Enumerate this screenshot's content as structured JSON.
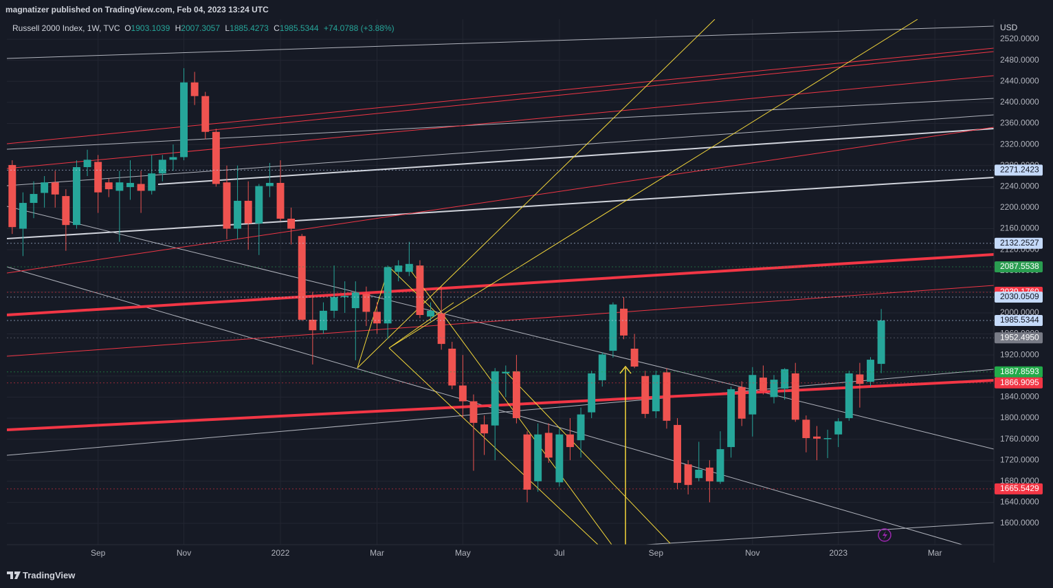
{
  "header": {
    "published": "magnatizer published on TradingView.com, Feb 04, 2023 13:24 UTC"
  },
  "footer": {
    "brand": "TradingView"
  },
  "chart_data": {
    "type": "candlestick",
    "title": "Russell 2000 Index, 1W, TVC",
    "ohlc_labels": [
      "O",
      "H",
      "L",
      "C"
    ],
    "change": "+74.0788 (+3.88%)",
    "currency": "USD",
    "categories": [
      null,
      null,
      null,
      null,
      null,
      null,
      null,
      null,
      "Sep",
      null,
      null,
      null,
      null,
      null,
      null,
      null,
      "Nov",
      null,
      null,
      null,
      null,
      null,
      null,
      null,
      null,
      "2022",
      null,
      null,
      null,
      null,
      null,
      null,
      null,
      null,
      "Mar",
      null,
      null,
      null,
      null,
      null,
      null,
      null,
      "May",
      null,
      null,
      null,
      null,
      null,
      null,
      null,
      null,
      "Jul",
      null,
      null,
      null,
      null,
      null,
      null,
      null,
      null,
      "Sep",
      null,
      null,
      null,
      null,
      null,
      null,
      null,
      null,
      "Nov",
      null,
      null,
      null,
      null,
      null,
      null,
      null,
      "2023",
      null,
      null,
      null,
      null,
      null,
      null,
      null,
      null,
      "Mar",
      null,
      null,
      null,
      null,
      null
    ],
    "open": [
      2281,
      2160,
      2209,
      2228,
      2248,
      2222,
      2167,
      2277,
      2287,
      2248,
      2232,
      2239,
      2245,
      2232,
      2265,
      2291,
      2296,
      2438,
      2412,
      2344,
      2248,
      2160,
      2213,
      2170,
      2241,
      2247,
      2179,
      2146,
      1987,
      1967,
      2004,
      2030,
      2009,
      2036,
      2002,
      1980,
      2078,
      2078,
      2090,
      1993,
      1999,
      1932,
      1862,
      1832,
      1788,
      1786,
      1885,
      1889,
      1769,
      1680,
      1772,
      1678,
      1769,
      1758,
      1811,
      1872,
      1928,
      2008,
      1932,
      1880,
      1813,
      1887,
      1787,
      1712,
      1686,
      1706,
      1679,
      1745,
      1859,
      1807,
      1877,
      1840,
      1856,
      1885,
      1797,
      1765,
      1760,
      1769,
      1800,
      1883,
      1869,
      1903.1039,
      null,
      null,
      null,
      null,
      null,
      null,
      null,
      null,
      null,
      null
    ],
    "high": [
      2290,
      2229,
      2250,
      2260,
      2270,
      2235,
      2290,
      2310,
      2300,
      2255,
      2270,
      2290,
      2270,
      2300,
      2300,
      2320,
      2465,
      2458,
      2420,
      2350,
      2280,
      2280,
      2250,
      2245,
      2285,
      2290,
      2200,
      2150,
      2040,
      2020,
      2090,
      2060,
      2060,
      2050,
      2020,
      2090,
      2100,
      2135,
      2100,
      2020,
      2050,
      1945,
      1920,
      1845,
      1805,
      1895,
      1900,
      1920,
      1775,
      1790,
      1790,
      1780,
      1800,
      1820,
      1890,
      1925,
      2020,
      2030,
      1960,
      1890,
      1890,
      1895,
      1800,
      1720,
      1755,
      1720,
      1775,
      1860,
      1870,
      1897,
      1900,
      1882,
      1895,
      1905,
      1805,
      1785,
      1778,
      1800,
      1890,
      1905,
      1916,
      2007.3057,
      null,
      null,
      null,
      null,
      null,
      null,
      null,
      null,
      null,
      null
    ],
    "low": [
      2150,
      2108,
      2180,
      2200,
      2200,
      2118,
      2160,
      2260,
      2190,
      2220,
      2135,
      2215,
      2190,
      2225,
      2250,
      2270,
      2290,
      2395,
      2330,
      2240,
      2140,
      2140,
      2120,
      2110,
      2220,
      2175,
      2130,
      1985,
      1902,
      1960,
      1990,
      2000,
      1910,
      1975,
      1960,
      1950,
      2060,
      2070,
      1990,
      1985,
      1930,
      1855,
      1800,
      1700,
      1730,
      1720,
      1840,
      1790,
      1640,
      1660,
      1715,
      1670,
      1720,
      1725,
      1800,
      1860,
      1915,
      1950,
      1895,
      1800,
      1800,
      1780,
      1665,
      1655,
      1680,
      1640,
      1675,
      1725,
      1785,
      1765,
      1845,
      1828,
      1835,
      1793,
      1735,
      1720,
      1724,
      1745,
      1795,
      1820,
      1860,
      1885.4273,
      null,
      null,
      null,
      null,
      null,
      null,
      null,
      null,
      null,
      null
    ],
    "close": [
      2163,
      2209,
      2226,
      2248,
      2225,
      2167,
      2277,
      2291,
      2229,
      2235,
      2248,
      2247,
      2232,
      2265,
      2291,
      2296,
      2438,
      2412,
      2344,
      2245,
      2160,
      2213,
      2170,
      2241,
      2247,
      2179,
      2160,
      1987,
      1967,
      2004,
      2030,
      2032,
      2039,
      2002,
      1980,
      2087,
      2090,
      2093,
      1996,
      2004,
      1941,
      1862,
      1832,
      1791,
      1771,
      1889,
      1888,
      1800,
      1664,
      1769,
      1725,
      1769,
      1745,
      1807,
      1885,
      1921,
      2016,
      1957,
      1898,
      1808,
      1882,
      1795,
      1677,
      1673,
      1702,
      1680,
      1741,
      1855,
      1799,
      1882,
      1852,
      1873,
      1893,
      1797,
      1762,
      1761,
      1762,
      1794,
      1885,
      1865,
      1911,
      1985.5344,
      null,
      null,
      null,
      null,
      null,
      null,
      null,
      null,
      null,
      null
    ],
    "up_color": "#26a69a",
    "down_color": "#ef5350",
    "grid": true,
    "ylim": [
      1559.5,
      2558
    ],
    "yticks": [
      {
        "value": 1600,
        "label": "1600.0000"
      },
      {
        "value": 1640,
        "label": "1640.0000"
      },
      {
        "value": 1680,
        "label": "1680.0000"
      },
      {
        "value": 1720,
        "label": "1720.0000"
      },
      {
        "value": 1760,
        "label": "1760.0000"
      },
      {
        "value": 1800,
        "label": "1800.0000"
      },
      {
        "value": 1840,
        "label": "1840.0000"
      },
      {
        "value": 1880,
        "label": "1880.0000"
      },
      {
        "value": 1920,
        "label": "1920.0000"
      },
      {
        "value": 1960,
        "label": "1960.0000"
      },
      {
        "value": 2000,
        "label": "2000.0000"
      },
      {
        "value": 2040,
        "label": "2040.0000"
      },
      {
        "value": 2080,
        "label": "2080.0000"
      },
      {
        "value": 2120,
        "label": "2120.0000"
      },
      {
        "value": 2160,
        "label": "2160.0000"
      },
      {
        "value": 2200,
        "label": "2200.0000"
      },
      {
        "value": 2240,
        "label": "2240.0000"
      },
      {
        "value": 2280,
        "label": "2280.0000"
      },
      {
        "value": 2320,
        "label": "2320.0000"
      },
      {
        "value": 2360,
        "label": "2360.0000"
      },
      {
        "value": 2400,
        "label": "2400.0000"
      },
      {
        "value": 2440,
        "label": "2440.0000"
      },
      {
        "value": 2480,
        "label": "2480.0000"
      },
      {
        "value": 2520,
        "label": "2520.0000"
      }
    ],
    "price_tags": [
      {
        "value": 2271.2423,
        "color": "#c5dafa",
        "text_color": "#131722"
      },
      {
        "value": 2132.2527,
        "color": "#c5dafa",
        "text_color": "#131722"
      },
      {
        "value": 2087.5538,
        "color": "#2a9d50",
        "text_color": "#ffffff"
      },
      {
        "value": 2039.176,
        "label": "2039.1760",
        "color": "#f23645",
        "text_color": "#ffffff"
      },
      {
        "value": 2030.0509,
        "color": "#c5dafa",
        "text_color": "#131722"
      },
      {
        "value": 1985.5344,
        "color": "#c5dafa",
        "text_color": "#131722"
      },
      {
        "value": 1952.495,
        "label": "1952.4950",
        "color": "#787b86",
        "text_color": "#ffffff"
      },
      {
        "value": 1887.8593,
        "color": "#22ab4a",
        "text_color": "#ffffff"
      },
      {
        "value": 1866.9095,
        "color": "#f23645",
        "text_color": "#ffffff"
      },
      {
        "value": 1665.5429,
        "color": "#f23645",
        "text_color": "#ffffff"
      }
    ]
  }
}
